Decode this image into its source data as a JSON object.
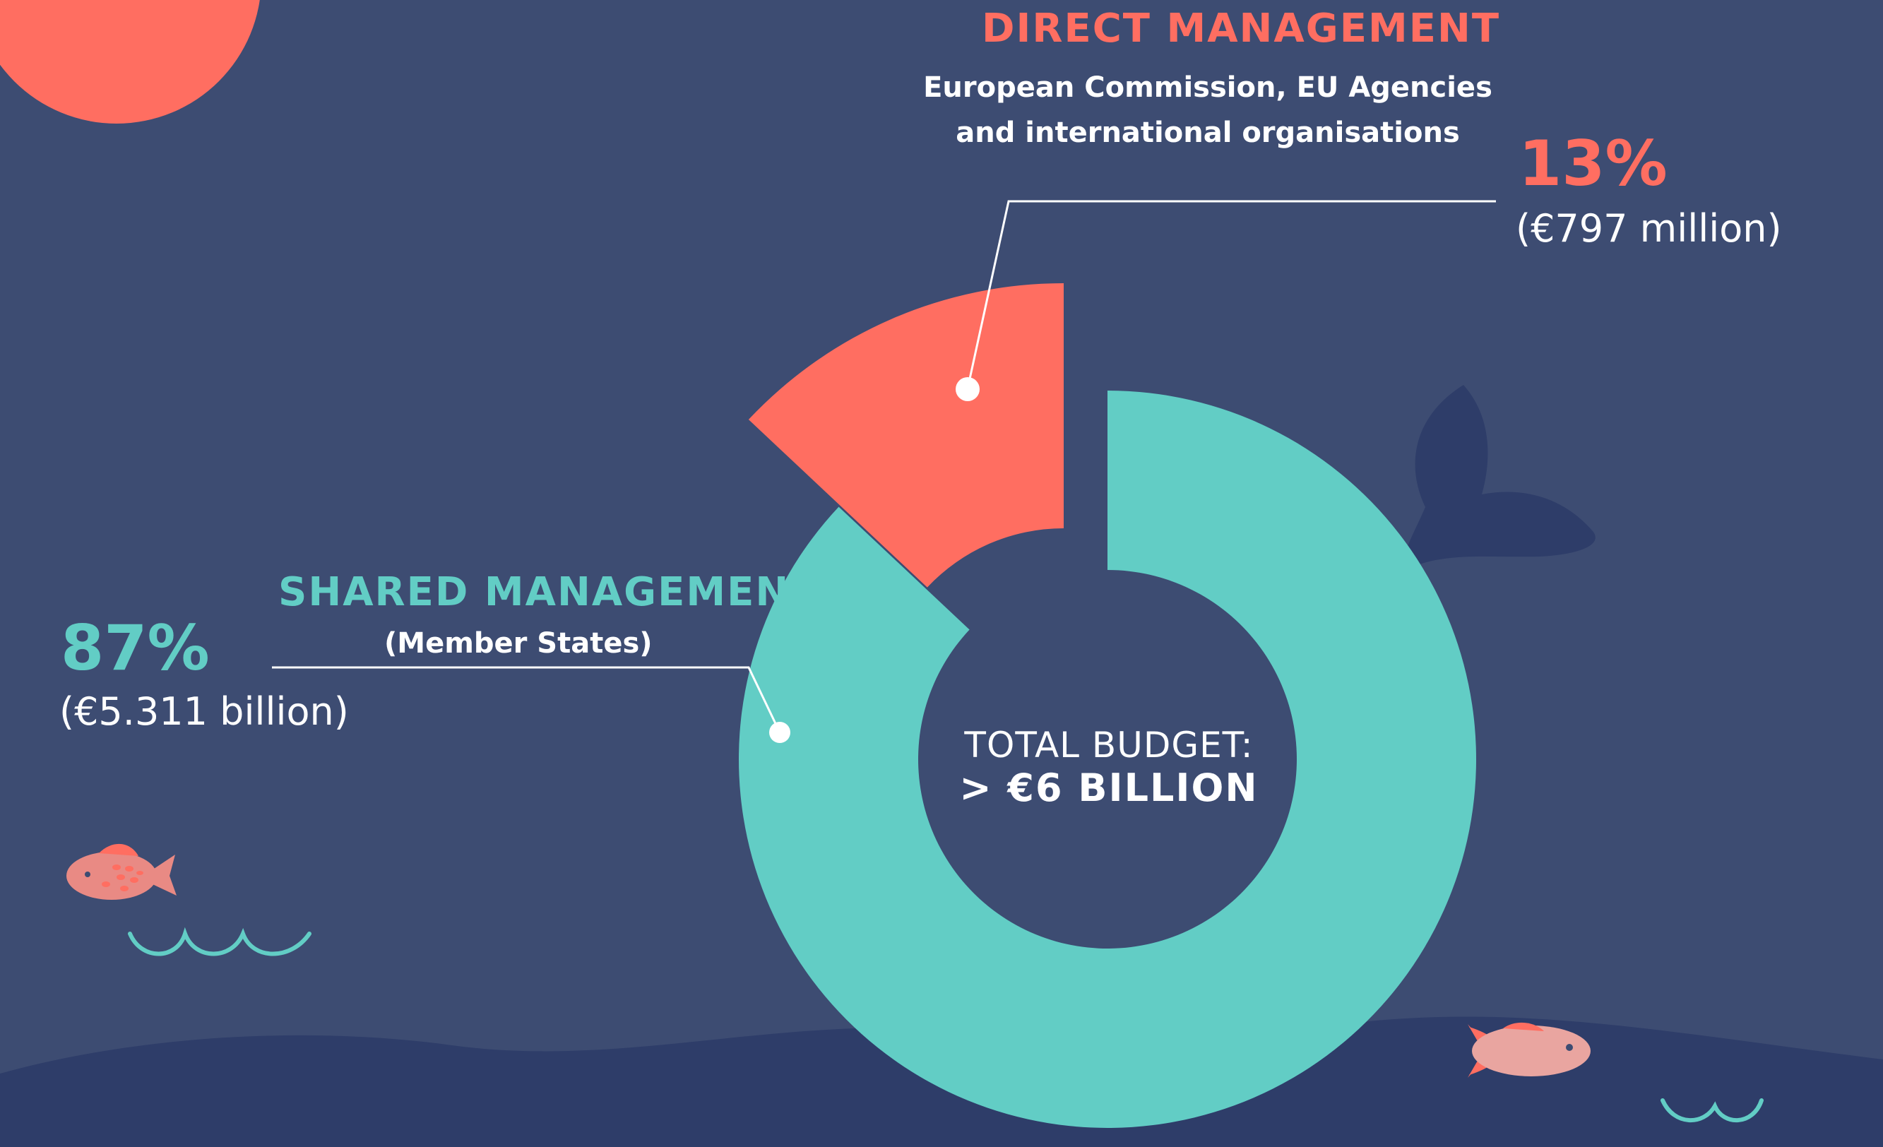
{
  "colors": {
    "background": "#3d4c72",
    "sea": "#2e3d69",
    "direct": "#ff6e61",
    "shared": "#62cdc5",
    "text": "#ffffff",
    "whale": "#2e3d69",
    "fish": "#e98a84"
  },
  "chart_data": {
    "type": "pie",
    "style": "donut",
    "slices": [
      {
        "label": "DIRECT MANAGEMENT",
        "description": "European Commission, EU Agencies and international organisations",
        "percent": 13,
        "value_label": "(€797 million)",
        "color": "#ff6e61"
      },
      {
        "label": "SHARED MANAGEMENT",
        "description": "(Member States)",
        "percent": 87,
        "value_label": "(€5.311 billion)",
        "color": "#62cdc5"
      }
    ],
    "center_label": "TOTAL BUDGET:",
    "center_value": "> €6 BILLION"
  },
  "direct": {
    "title": "DIRECT MANAGEMENT",
    "subtitle": "European Commission, EU Agencies and international organisations",
    "percent_label": "13%",
    "amount": "(€797 million)"
  },
  "shared": {
    "title": "SHARED MANAGEMENT",
    "subtitle": "(Member States)",
    "percent_label": "87%",
    "amount": "(€5.311 billion)"
  },
  "center": {
    "label": "TOTAL BUDGET:",
    "value": "> €6 BILLION"
  }
}
